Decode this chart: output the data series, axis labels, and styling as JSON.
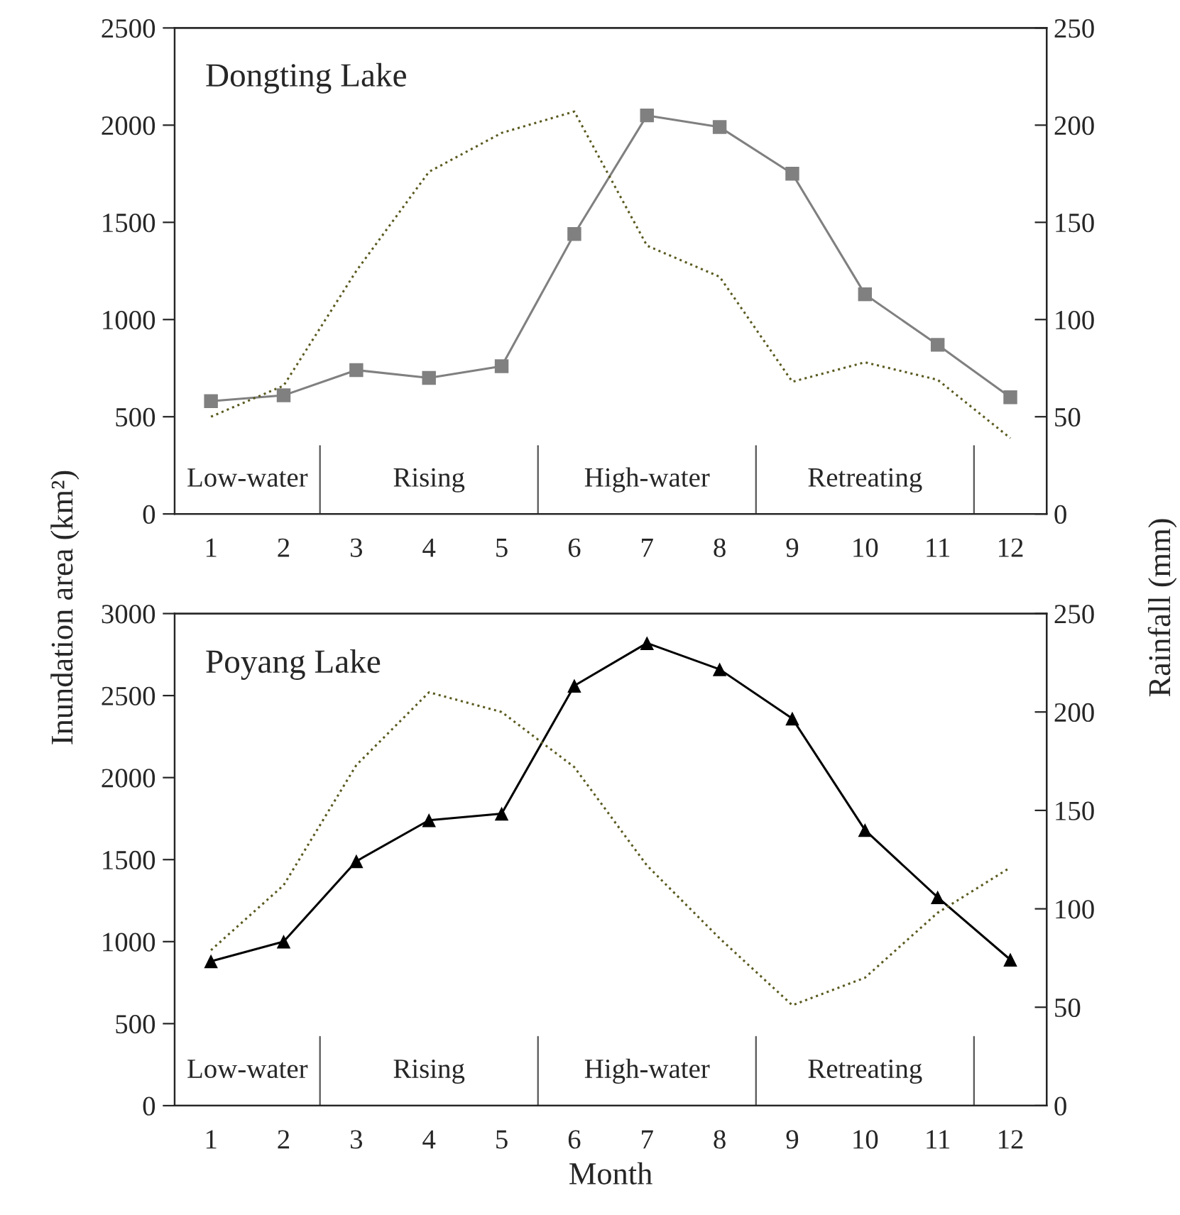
{
  "chart_data": [
    {
      "type": "line",
      "title": "Dongting Lake",
      "ylabel": "Inundation area (km²)",
      "y2label": "Rainfall (mm)",
      "categories": [
        "1",
        "2",
        "3",
        "4",
        "5",
        "6",
        "7",
        "8",
        "9",
        "10",
        "11",
        "12"
      ],
      "series": [
        {
          "color": "#808080",
          "marker": "square",
          "line_style": "solid",
          "values": [
            580,
            610,
            740,
            700,
            760,
            1440,
            2050,
            1990,
            1750,
            1130,
            870,
            600
          ]
        },
        {
          "color": "#5a5a20",
          "marker": "none",
          "line_style": "dotted",
          "axis": "y2",
          "values": [
            50,
            66,
            125,
            176,
            196,
            207,
            138,
            122,
            68,
            78,
            69,
            39
          ]
        }
      ],
      "ylim": [
        0,
        2500
      ],
      "yticks": [
        0,
        500,
        1000,
        1500,
        2000,
        2500
      ],
      "y2lim": [
        0,
        250
      ],
      "y2ticks": [
        0,
        50,
        100,
        150,
        200,
        250
      ],
      "annotations": [
        "Low-water",
        "Rising",
        "High-water",
        "Retreating"
      ],
      "grid": false,
      "legend": false
    },
    {
      "type": "line",
      "title": "Poyang Lake",
      "xlabel": "Month",
      "categories": [
        "1",
        "2",
        "3",
        "4",
        "5",
        "6",
        "7",
        "8",
        "9",
        "10",
        "11",
        "12"
      ],
      "series": [
        {
          "color": "#000000",
          "marker": "triangle",
          "line_style": "solid",
          "values": [
            880,
            1000,
            1490,
            1740,
            1780,
            2560,
            2820,
            2660,
            2360,
            1680,
            1270,
            890
          ]
        },
        {
          "color": "#5a5a20",
          "marker": "none",
          "line_style": "dotted",
          "axis": "y2",
          "values": [
            79,
            112,
            173,
            210,
            200,
            172,
            122,
            85,
            51,
            65,
            98,
            121
          ]
        }
      ],
      "ylim": [
        0,
        3000
      ],
      "yticks": [
        0,
        500,
        1000,
        1500,
        2000,
        2500,
        3000
      ],
      "y2lim": [
        0,
        250
      ],
      "y2ticks": [
        0,
        50,
        100,
        150,
        200,
        250
      ],
      "annotations": [
        "Low-water",
        "Rising",
        "High-water",
        "Retreating"
      ],
      "grid": false,
      "legend": false
    }
  ]
}
